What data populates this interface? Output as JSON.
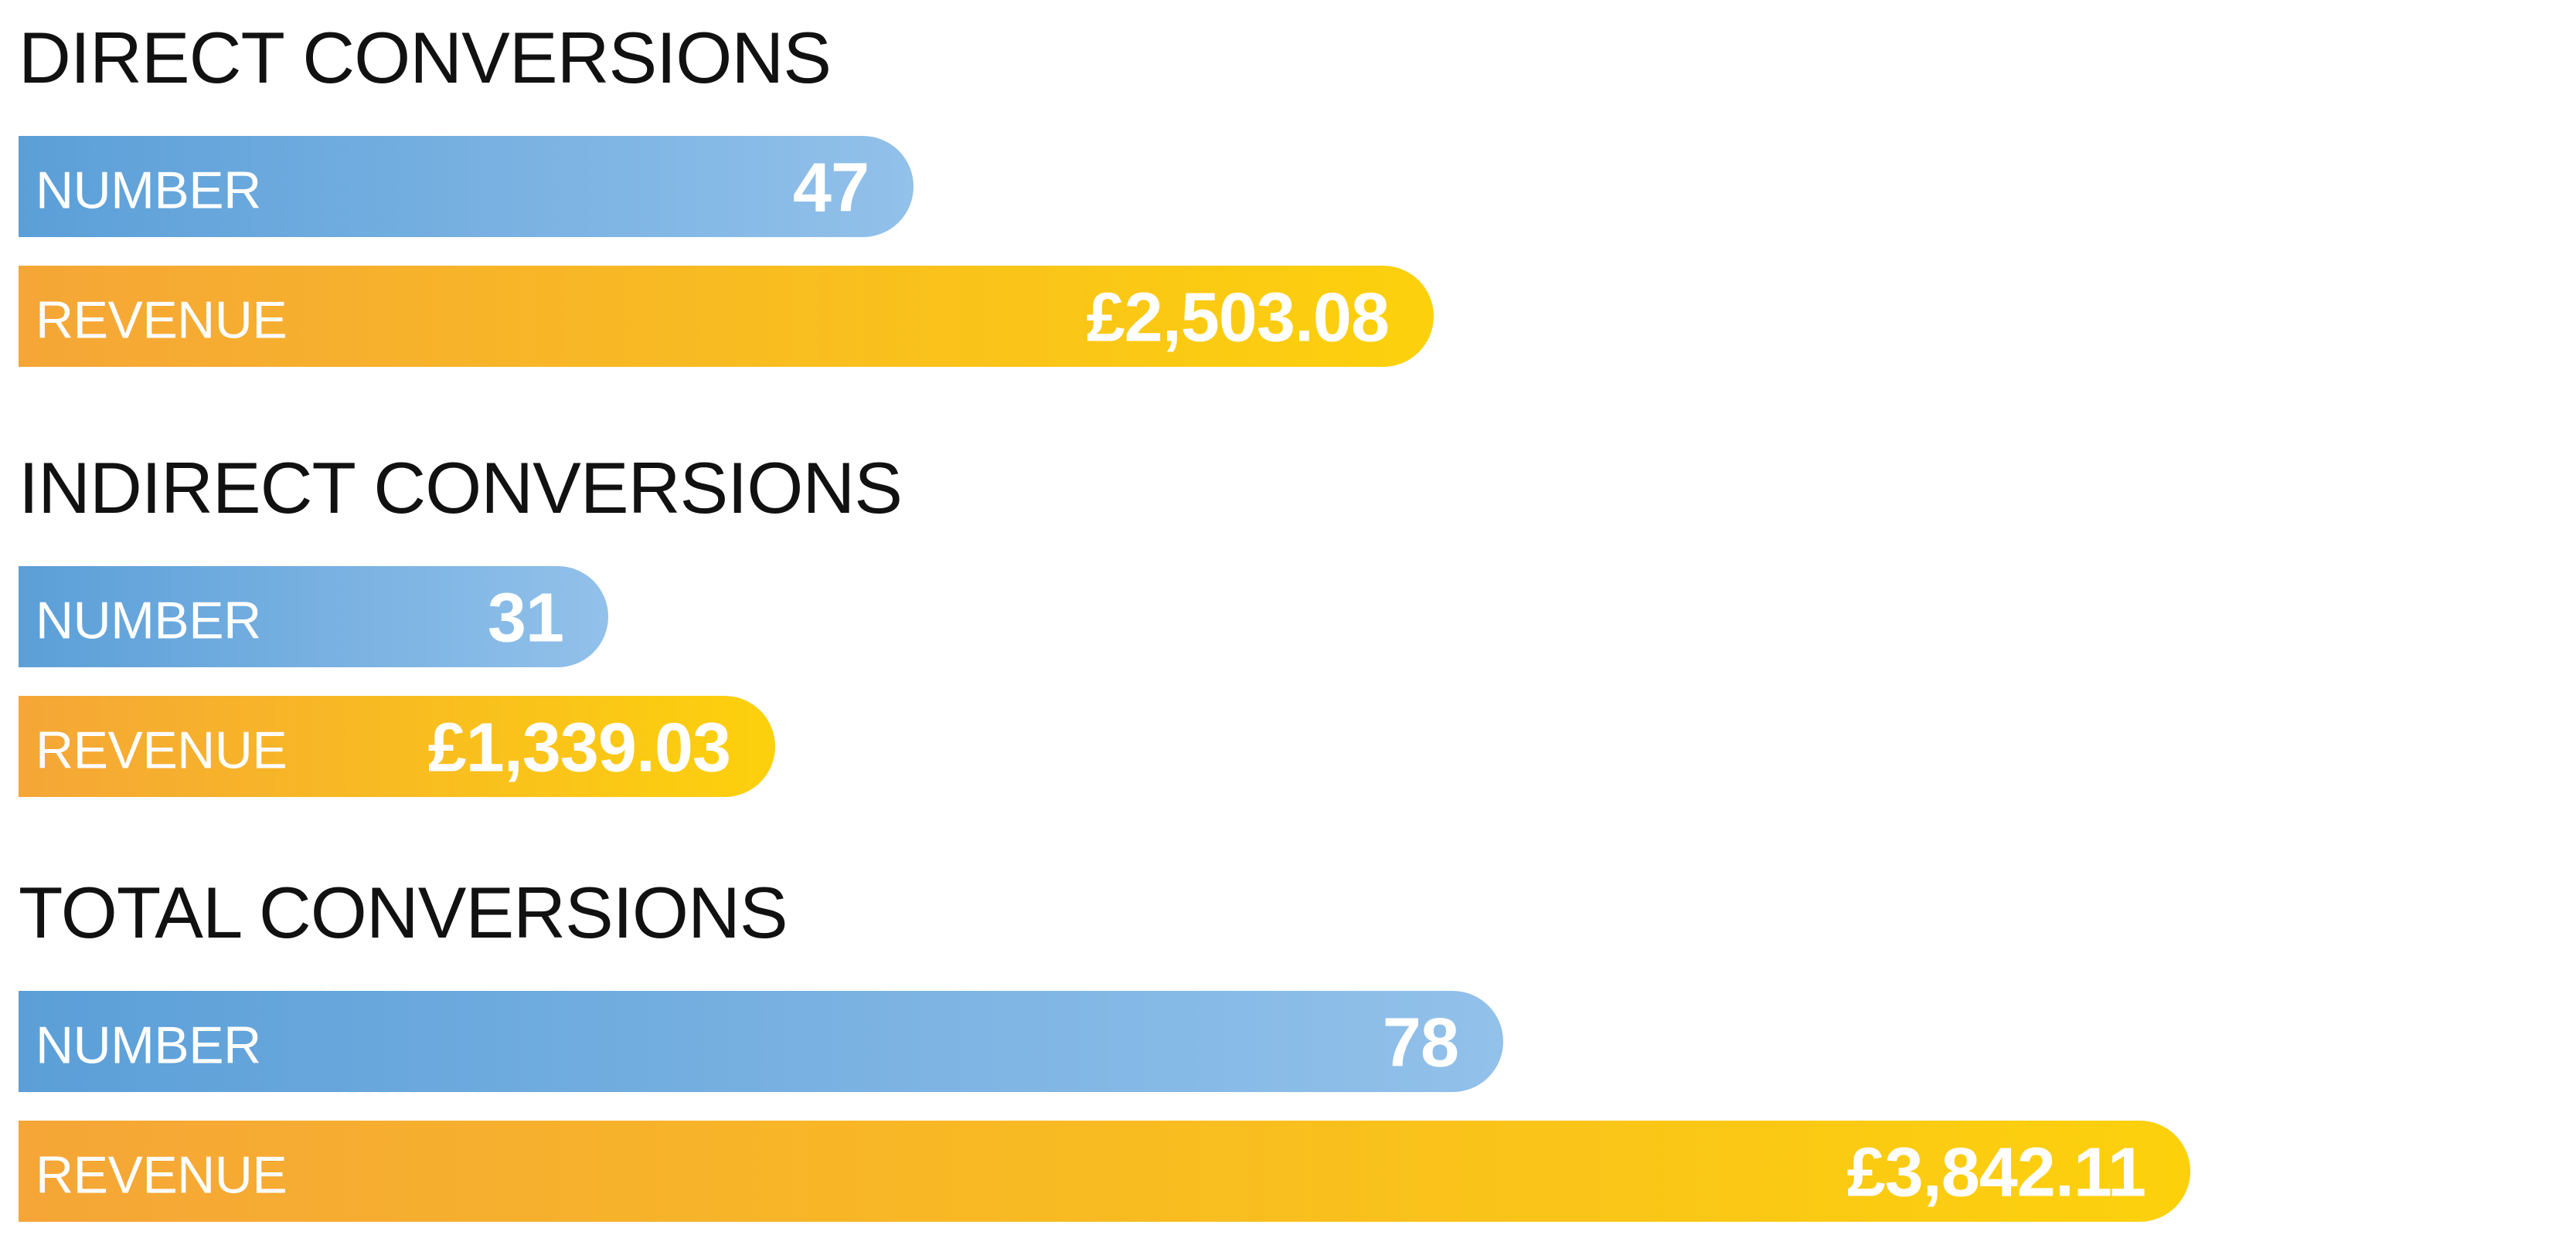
{
  "chart_data": {
    "type": "bar",
    "orientation": "horizontal",
    "groups": [
      {
        "title": "DIRECT CONVERSIONS",
        "bars": [
          {
            "label": "NUMBER",
            "value": 47,
            "display": "47",
            "kind": "number"
          },
          {
            "label": "REVENUE",
            "value": 2503.08,
            "display": "£2,503.08",
            "kind": "revenue"
          }
        ]
      },
      {
        "title": "INDIRECT CONVERSIONS",
        "bars": [
          {
            "label": "NUMBER",
            "value": 31,
            "display": "31",
            "kind": "number"
          },
          {
            "label": "REVENUE",
            "value": 1339.03,
            "display": "£1,339.03",
            "kind": "revenue"
          }
        ]
      },
      {
        "title": "TOTAL CONVERSIONS",
        "bars": [
          {
            "label": "NUMBER",
            "value": 78,
            "display": "78",
            "kind": "number"
          },
          {
            "label": "REVENUE",
            "value": 3842.11,
            "display": "£3,842.11",
            "kind": "revenue"
          }
        ]
      }
    ],
    "colors": {
      "number": [
        "#5b9fd8",
        "#92c1ea"
      ],
      "revenue": [
        "#f5a637",
        "#fcd10c"
      ]
    },
    "grid": false,
    "legend": "none"
  }
}
